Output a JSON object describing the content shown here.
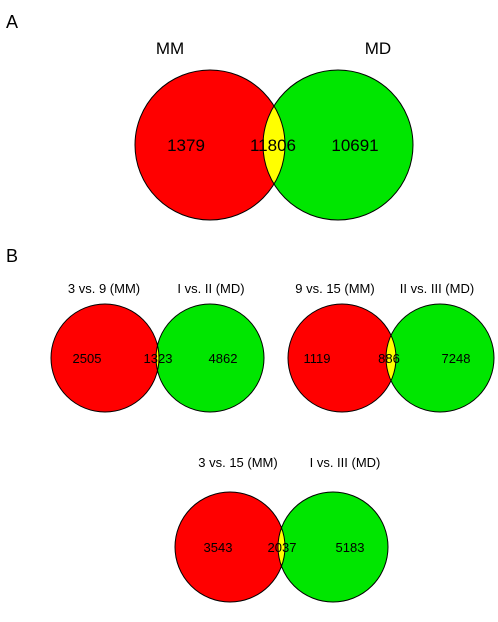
{
  "panel_a": {
    "letter": "A",
    "left_title": "MM",
    "right_title": "MD",
    "left_only": "1379",
    "overlap": "11806",
    "right_only": "10691"
  },
  "panel_b": {
    "letter": "B",
    "diagrams": [
      {
        "left_title": "3 vs. 9 (MM)",
        "right_title": "I vs. II (MD)",
        "left_only": "2505",
        "overlap": "1323",
        "right_only": "4862"
      },
      {
        "left_title": "9 vs. 15 (MM)",
        "right_title": "II vs. III (MD)",
        "left_only": "1119",
        "overlap": "886",
        "right_only": "7248"
      },
      {
        "left_title": "3 vs. 15 (MM)",
        "right_title": "I vs. III (MD)",
        "left_only": "3543",
        "overlap": "2037",
        "right_only": "5183"
      }
    ]
  },
  "colors": {
    "left_circle": "#ff0000",
    "right_circle": "#00e600",
    "overlap": "#ffff00",
    "stroke": "#000000"
  }
}
